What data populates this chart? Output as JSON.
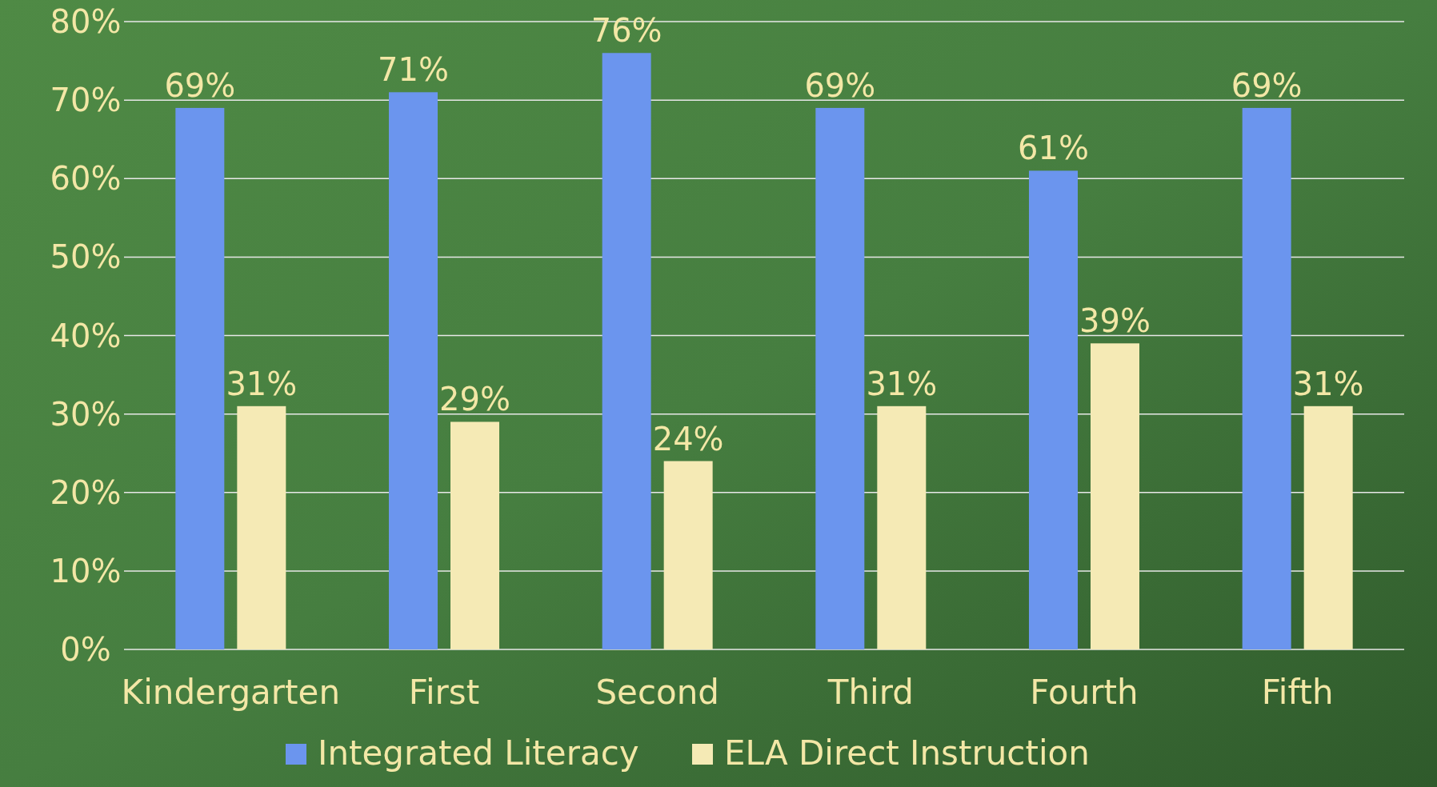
{
  "chart_data": {
    "type": "bar",
    "categories": [
      "Kindergarten",
      "First",
      "Second",
      "Third",
      "Fourth",
      "Fifth"
    ],
    "series": [
      {
        "name": "Integrated Literacy",
        "color": "#6b95ee",
        "values": [
          69,
          71,
          76,
          69,
          61,
          69
        ],
        "value_labels": [
          "69%",
          "71%",
          "76%",
          "69%",
          "61%",
          "69%"
        ]
      },
      {
        "name": "ELA Direct Instruction",
        "color": "#f5eab5",
        "values": [
          31,
          29,
          24,
          31,
          39,
          31
        ],
        "value_labels": [
          "31%",
          "29%",
          "24%",
          "31%",
          "39%",
          "31%"
        ]
      }
    ],
    "ylim": [
      0,
      80
    ],
    "yticks": [
      {
        "value": 0,
        "label": "0%"
      },
      {
        "value": 10,
        "label": "10%"
      },
      {
        "value": 20,
        "label": "20%"
      },
      {
        "value": 30,
        "label": "30%"
      },
      {
        "value": 40,
        "label": "40%"
      },
      {
        "value": 50,
        "label": "50%"
      },
      {
        "value": 60,
        "label": "60%"
      },
      {
        "value": 70,
        "label": "70%"
      },
      {
        "value": 80,
        "label": "80%"
      }
    ],
    "grid": "y",
    "legend": "bottom"
  }
}
